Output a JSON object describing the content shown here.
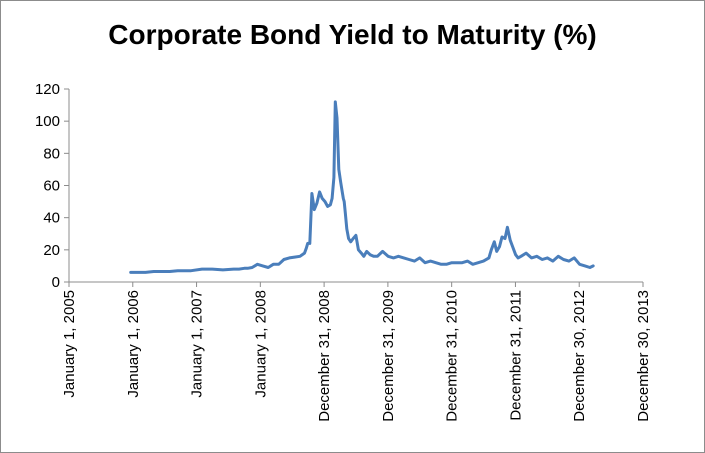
{
  "chart_data": {
    "type": "line",
    "title": "Corporate Bond Yield to Maturity (%)",
    "xlabel": "",
    "ylabel": "",
    "ylim": [
      0,
      120
    ],
    "yticks": [
      0,
      20,
      40,
      60,
      80,
      100,
      120
    ],
    "xlim": [
      "2005-01-01",
      "2013-12-30"
    ],
    "xticks": [
      {
        "date": "2005-01-01",
        "label": "January 1, 2005"
      },
      {
        "date": "2006-01-01",
        "label": "January 1, 2006"
      },
      {
        "date": "2007-01-01",
        "label": "January 1, 2007"
      },
      {
        "date": "2008-01-01",
        "label": "January 1, 2008"
      },
      {
        "date": "2008-12-31",
        "label": "December 31, 2008"
      },
      {
        "date": "2009-12-31",
        "label": "December 31, 2009"
      },
      {
        "date": "2010-12-31",
        "label": "December 31, 2010"
      },
      {
        "date": "2011-12-31",
        "label": "December 31, 2011"
      },
      {
        "date": "2012-12-30",
        "label": "December 30, 2012"
      },
      {
        "date": "2013-12-30",
        "label": "December 30, 2013"
      }
    ],
    "grid": false,
    "legend": "none",
    "series": [
      {
        "color": "#4a7ebb",
        "x": [
          "2005-12-20",
          "2006-01-30",
          "2006-03-15",
          "2006-05-01",
          "2006-06-15",
          "2006-08-01",
          "2006-09-15",
          "2006-11-01",
          "2006-12-01",
          "2007-02-01",
          "2007-04-01",
          "2007-06-01",
          "2007-08-01",
          "2007-09-01",
          "2007-10-01",
          "2007-10-20",
          "2007-11-15",
          "2007-12-15",
          "2008-01-15",
          "2008-02-15",
          "2008-03-15",
          "2008-04-15",
          "2008-05-15",
          "2008-06-15",
          "2008-07-15",
          "2008-08-15",
          "2008-09-10",
          "2008-09-20",
          "2008-09-28",
          "2008-10-10",
          "2008-10-22",
          "2008-11-05",
          "2008-11-20",
          "2008-12-05",
          "2008-12-20",
          "2009-01-05",
          "2009-01-20",
          "2009-02-05",
          "2009-02-15",
          "2009-02-25",
          "2009-03-05",
          "2009-03-15",
          "2009-03-25",
          "2009-04-05",
          "2009-04-15",
          "2009-04-20",
          "2009-04-25",
          "2009-05-01",
          "2009-05-10",
          "2009-05-20",
          "2009-06-01",
          "2009-06-15",
          "2009-07-01",
          "2009-07-15",
          "2009-08-01",
          "2009-08-15",
          "2009-09-01",
          "2009-09-20",
          "2009-10-10",
          "2009-11-01",
          "2009-12-01",
          "2010-01-01",
          "2010-02-01",
          "2010-03-01",
          "2010-04-01",
          "2010-05-01",
          "2010-06-01",
          "2010-07-01",
          "2010-08-01",
          "2010-09-01",
          "2010-10-01",
          "2010-11-01",
          "2010-12-01",
          "2011-01-01",
          "2011-02-01",
          "2011-03-01",
          "2011-04-01",
          "2011-05-01",
          "2011-06-01",
          "2011-07-01",
          "2011-08-01",
          "2011-08-15",
          "2011-09-01",
          "2011-09-15",
          "2011-10-01",
          "2011-10-15",
          "2011-11-01",
          "2011-11-15",
          "2011-12-01",
          "2011-12-15",
          "2012-01-01",
          "2012-01-15",
          "2012-02-01",
          "2012-03-01",
          "2012-04-01",
          "2012-05-01",
          "2012-06-01",
          "2012-07-01",
          "2012-08-01",
          "2012-09-01",
          "2012-10-01",
          "2012-11-01",
          "2012-12-01",
          "2013-01-01",
          "2013-02-01",
          "2013-03-01",
          "2013-03-20"
        ],
        "values": [
          6,
          6,
          6,
          6.5,
          6.5,
          6.5,
          7,
          7,
          7,
          8,
          8,
          7.5,
          8,
          8,
          8.5,
          8.5,
          9,
          11,
          10,
          9,
          11,
          11,
          14,
          15,
          15.5,
          16,
          18,
          21,
          24,
          24,
          55,
          45,
          49,
          56,
          52,
          50,
          47,
          48,
          52,
          65,
          112,
          102,
          70,
          62,
          55,
          52,
          50,
          43,
          33,
          27,
          25,
          27,
          29,
          20,
          18,
          16,
          19,
          17,
          16,
          16,
          19,
          16,
          15,
          16,
          15,
          14,
          13,
          15,
          12,
          13,
          12,
          11,
          11,
          12,
          12,
          12,
          13,
          11,
          12,
          13,
          15,
          20,
          25,
          19,
          22,
          28,
          27,
          34,
          26,
          22,
          17,
          15,
          16,
          18,
          15,
          16,
          14,
          15,
          13,
          16,
          14,
          13,
          15,
          11,
          10,
          9,
          10
        ]
      }
    ]
  }
}
